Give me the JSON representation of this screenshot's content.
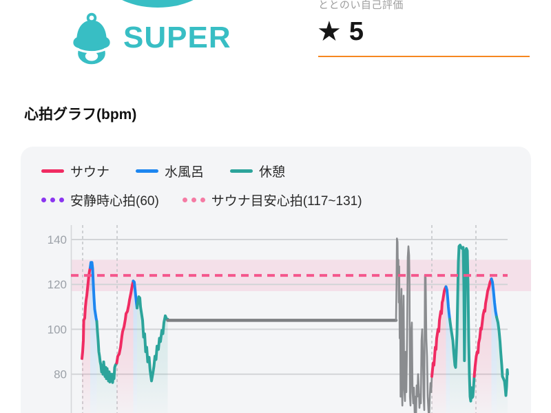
{
  "header": {
    "app_name": "SUPER",
    "rating_label": "ととのい自己評価",
    "rating_star": "★",
    "rating_value": "5"
  },
  "section_title": "心拍グラフ(bpm)",
  "legend": {
    "row1": [
      {
        "label": "サウナ",
        "color": "#F02B62"
      },
      {
        "label": "水風呂",
        "color": "#1D86F0"
      },
      {
        "label": "休憩",
        "color": "#2CA49B"
      }
    ],
    "row2": [
      {
        "label": "安静時心拍(60)",
        "color": "#8B35F0"
      },
      {
        "label": "サウナ目安心拍(117~131)",
        "color": "#F57BA4"
      }
    ]
  },
  "colors": {
    "accent_teal": "#38BEC4",
    "orange_divider": "#F6871F",
    "card_bg": "#F4F5F7",
    "grid_line": "#D2D4D7",
    "axis_line": "#D5D7DA",
    "marker_dash": "#C5C7CA",
    "tick_text": "#9CA1A8",
    "band_fill": "rgba(244,87,140,0.13)",
    "band_center": "#F4578C"
  },
  "chart_data": {
    "type": "line",
    "title": "心拍グラフ(bpm)",
    "ylabel": "bpm",
    "yticks": [
      140,
      120,
      100,
      80
    ],
    "visible_y_range": [
      58,
      145
    ],
    "grid": true,
    "target_band": {
      "label": "サウナ目安心拍",
      "min": 117,
      "max": 131,
      "center_line": 124
    },
    "resting_heart_rate": {
      "label": "安静時心拍",
      "value": 60
    },
    "session_start_markers_x": [
      120,
      170,
      627,
      691
    ],
    "palette": {
      "sauna": "#F02B62",
      "water": "#1D86F0",
      "rest": "#2CA49B",
      "unknown": "#8A8C8F"
    },
    "series_segments": [
      {
        "type": "sauna",
        "points": [
          [
            119,
            87
          ],
          [
            120,
            90
          ],
          [
            121,
            95
          ],
          [
            121.6,
            104
          ],
          [
            123,
            105
          ],
          [
            124,
            110
          ],
          [
            125,
            113
          ],
          [
            126,
            115
          ],
          [
            127,
            118
          ],
          [
            128,
            121
          ],
          [
            129,
            124
          ],
          [
            130,
            126
          ],
          [
            131,
            127.5
          ]
        ]
      },
      {
        "type": "water",
        "points": [
          [
            131,
            127.5
          ],
          [
            132,
            129.8
          ],
          [
            133.5,
            129.8
          ],
          [
            134.5,
            127
          ],
          [
            135.5,
            120
          ],
          [
            136.5,
            114
          ],
          [
            137.5,
            109
          ],
          [
            138.5,
            107
          ],
          [
            139.5,
            105
          ],
          [
            140.5,
            103.5
          ]
        ]
      },
      {
        "type": "rest",
        "points": [
          [
            140.5,
            103.5
          ],
          [
            141.5,
            99
          ],
          [
            142.5,
            95
          ],
          [
            143.5,
            90
          ],
          [
            144.5,
            88
          ],
          [
            145.5,
            85.5
          ],
          [
            146.5,
            84
          ],
          [
            147.5,
            81
          ],
          [
            148.5,
            84
          ],
          [
            149.5,
            80
          ],
          [
            150.5,
            85.5
          ],
          [
            151.5,
            82
          ],
          [
            152.5,
            79
          ],
          [
            153.5,
            83
          ],
          [
            154.5,
            78
          ],
          [
            155.5,
            82.5
          ],
          [
            156.5,
            80
          ],
          [
            157.5,
            77
          ],
          [
            158.5,
            81
          ],
          [
            159.5,
            76.5
          ],
          [
            160.5,
            80
          ],
          [
            161.5,
            77
          ],
          [
            162.5,
            80
          ],
          [
            163.5,
            76.3
          ],
          [
            164.5,
            79
          ],
          [
            165.5,
            78
          ],
          [
            166.5,
            83
          ],
          [
            167.5,
            84
          ],
          [
            168.5,
            84.5
          ],
          [
            169.5,
            85
          ]
        ]
      },
      {
        "type": "sauna",
        "points": [
          [
            169.5,
            85
          ],
          [
            171,
            88
          ],
          [
            173,
            89
          ],
          [
            175,
            92
          ],
          [
            177,
            97
          ],
          [
            178,
            99
          ],
          [
            180,
            101
          ],
          [
            182,
            104.5
          ],
          [
            183,
            107
          ],
          [
            185,
            108
          ],
          [
            187,
            111
          ],
          [
            188,
            113
          ],
          [
            190,
            116
          ],
          [
            192,
            119.5
          ],
          [
            193.5,
            121.5
          ]
        ]
      },
      {
        "type": "water",
        "points": [
          [
            193.5,
            121.5
          ],
          [
            195,
            121
          ],
          [
            196.5,
            116.5
          ],
          [
            198,
            112
          ],
          [
            199,
            109.5
          ]
        ]
      },
      {
        "type": "rest",
        "points": [
          [
            199,
            109.5
          ],
          [
            200,
            112
          ],
          [
            201.5,
            114.5
          ],
          [
            203,
            114
          ],
          [
            204,
            110
          ],
          [
            205.5,
            107
          ],
          [
            207,
            104
          ],
          [
            208.5,
            96.5
          ],
          [
            210,
            98
          ],
          [
            211.5,
            90
          ],
          [
            213,
            92
          ],
          [
            214.5,
            85.5
          ],
          [
            216.5,
            87.5
          ],
          [
            218,
            81.5
          ],
          [
            220,
            77
          ],
          [
            222,
            80.5
          ],
          [
            223.5,
            83.5
          ],
          [
            225,
            88
          ],
          [
            226.5,
            86.5
          ],
          [
            228,
            92.5
          ],
          [
            230,
            91
          ],
          [
            231.5,
            96
          ],
          [
            233,
            94.5
          ],
          [
            235,
            99.5
          ],
          [
            236.5,
            98
          ],
          [
            238,
            103
          ],
          [
            240,
            106
          ],
          [
            242,
            104.5
          ],
          [
            243.5,
            104.5
          ]
        ]
      },
      {
        "type": "unknown",
        "width": 4.5,
        "color": "#7D7F82",
        "points": [
          [
            243.5,
            104
          ],
          [
            575,
            104
          ]
        ]
      },
      {
        "type": "unknown",
        "width": 2.6,
        "points": [
          [
            575,
            104
          ],
          [
            575.7,
            120
          ],
          [
            576.3,
            140.5
          ],
          [
            577.2,
            139
          ],
          [
            577.8,
            124
          ],
          [
            578.4,
            131
          ],
          [
            579,
            112
          ],
          [
            579.6,
            128
          ],
          [
            580.3,
            96
          ],
          [
            581,
            112
          ],
          [
            581.6,
            70
          ],
          [
            582.2,
            108
          ],
          [
            582.9,
            118
          ],
          [
            583.5,
            74
          ],
          [
            584.2,
            66
          ],
          [
            585,
            100
          ],
          [
            586,
            115
          ],
          [
            587,
            73
          ],
          [
            588,
            68
          ],
          [
            589,
            90
          ],
          [
            590,
            72
          ],
          [
            591,
            95
          ],
          [
            592,
            132
          ],
          [
            593,
            137
          ],
          [
            594,
            133
          ],
          [
            594.6,
            120
          ],
          [
            595.2,
            70
          ],
          [
            596,
            66
          ],
          [
            597,
            98
          ],
          [
            598,
            103
          ],
          [
            599,
            72
          ],
          [
            600,
            67
          ],
          [
            601,
            74
          ],
          [
            602,
            63
          ],
          [
            603,
            70
          ],
          [
            604,
            61
          ],
          [
            605,
            75
          ],
          [
            606,
            70
          ],
          [
            607,
            80
          ],
          [
            608,
            74
          ],
          [
            609,
            65
          ],
          [
            610,
            71
          ],
          [
            611,
            67
          ],
          [
            612,
            95
          ],
          [
            613,
            100
          ],
          [
            614,
            88
          ],
          [
            615,
            70
          ],
          [
            616,
            64
          ],
          [
            617,
            124
          ],
          [
            618,
            123
          ],
          [
            619,
            96
          ],
          [
            620,
            88
          ],
          [
            621,
            70
          ],
          [
            622,
            64
          ],
          [
            623,
            60
          ],
          [
            624,
            70
          ],
          [
            625,
            76
          ],
          [
            626,
            72
          ],
          [
            627,
            79
          ]
        ]
      },
      {
        "type": "sauna",
        "points": [
          [
            627,
            79
          ],
          [
            628,
            82
          ],
          [
            629,
            85
          ],
          [
            630,
            84
          ],
          [
            631,
            88
          ],
          [
            632,
            92
          ],
          [
            633,
            91
          ],
          [
            634,
            96
          ],
          [
            635,
            98
          ],
          [
            636,
            100
          ],
          [
            637,
            99
          ],
          [
            638,
            104
          ],
          [
            639,
            106
          ],
          [
            640,
            108
          ],
          [
            641,
            107
          ],
          [
            642,
            112
          ],
          [
            643,
            113
          ],
          [
            644,
            115
          ],
          [
            645,
            117
          ],
          [
            646,
            118
          ],
          [
            647.5,
            119
          ]
        ]
      },
      {
        "type": "water",
        "points": [
          [
            647.5,
            119
          ],
          [
            649,
            117.5
          ],
          [
            650,
            114
          ],
          [
            651,
            110
          ],
          [
            652,
            107
          ],
          [
            653,
            104.5
          ]
        ]
      },
      {
        "type": "rest",
        "points": [
          [
            653,
            104.5
          ],
          [
            654.5,
            101
          ],
          [
            656,
            98
          ],
          [
            657.5,
            95
          ],
          [
            659,
            89
          ],
          [
            660.5,
            84
          ],
          [
            661.5,
            83
          ],
          [
            662.5,
            90
          ],
          [
            663.5,
            98
          ],
          [
            664.5,
            114
          ],
          [
            665.5,
            130
          ],
          [
            666.5,
            137
          ],
          [
            668,
            137.5
          ],
          [
            669.5,
            136.5
          ],
          [
            671,
            136
          ],
          [
            672.5,
            136.5
          ],
          [
            673.5,
            120
          ],
          [
            674.3,
            86
          ],
          [
            675.2,
            110
          ],
          [
            676.2,
            135
          ],
          [
            677.2,
            136
          ],
          [
            678.5,
            135
          ],
          [
            679.5,
            120
          ],
          [
            680.5,
            95
          ],
          [
            681.5,
            80
          ],
          [
            682.5,
            70
          ],
          [
            683.5,
            68
          ],
          [
            684.5,
            74
          ],
          [
            685.5,
            69.5
          ],
          [
            686.5,
            70
          ],
          [
            687.5,
            74
          ],
          [
            688.5,
            79
          ]
        ]
      },
      {
        "type": "sauna",
        "points": [
          [
            688.5,
            79
          ],
          [
            690,
            84
          ],
          [
            691.5,
            88
          ],
          [
            693,
            90
          ],
          [
            694,
            89.5
          ],
          [
            695,
            94
          ],
          [
            696.5,
            96
          ],
          [
            698,
            100.5
          ],
          [
            699,
            100
          ],
          [
            700,
            102.5
          ],
          [
            701.5,
            106.5
          ],
          [
            703,
            108.5
          ],
          [
            704,
            108
          ],
          [
            705,
            111.5
          ],
          [
            706.5,
            114
          ],
          [
            708,
            117
          ],
          [
            710,
            119
          ],
          [
            711.5,
            121
          ],
          [
            713.5,
            122.5
          ]
        ]
      },
      {
        "type": "water",
        "points": [
          [
            713.5,
            122.5
          ],
          [
            715,
            121
          ],
          [
            716.5,
            117
          ],
          [
            718,
            112
          ],
          [
            719.5,
            108
          ],
          [
            721,
            105.5
          ]
        ]
      },
      {
        "type": "rest",
        "points": [
          [
            721,
            105.5
          ],
          [
            723,
            103
          ],
          [
            724.5,
            99.5
          ],
          [
            726,
            94.5
          ],
          [
            727,
            90
          ],
          [
            728.5,
            84
          ],
          [
            729.5,
            79
          ],
          [
            731,
            78
          ],
          [
            732.5,
            76.8
          ],
          [
            733.5,
            74
          ],
          [
            734.5,
            70.5
          ],
          [
            735.5,
            74.5
          ],
          [
            736.5,
            82
          ],
          [
            737,
            80
          ]
        ]
      }
    ]
  }
}
